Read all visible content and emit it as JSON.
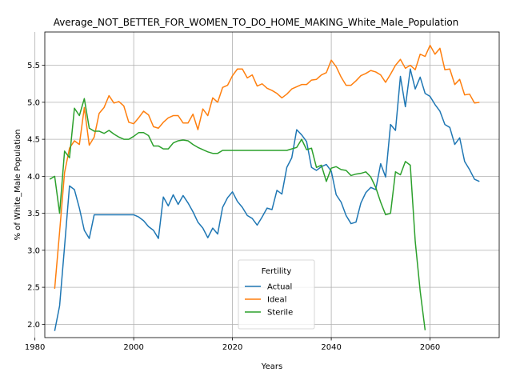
{
  "chart_data": {
    "type": "line",
    "title": "Average_NOT_BETTER_FOR_WOMEN_TO_DO_HOME_MAKING_White_Male_Population",
    "xlabel": "Years",
    "ylabel": "% of White_Male Population",
    "xlim": [
      1982,
      2074
    ],
    "ylim": [
      1.82,
      5.95
    ],
    "xticks": [
      1980,
      2000,
      2020,
      2040,
      2060
    ],
    "yticks": [
      2.0,
      2.5,
      3.0,
      3.5,
      4.0,
      4.5,
      5.0,
      5.5
    ],
    "grid": true,
    "legend": {
      "title": "Fertility",
      "placement": "lower-center"
    },
    "series": [
      {
        "name": "Actual",
        "color": "#1f77b4",
        "x": [
          1984,
          1985,
          1986,
          1987,
          1988,
          1989,
          1990,
          1991,
          1992,
          1993,
          1994,
          1995,
          1996,
          1997,
          1998,
          1999,
          2000,
          2001,
          2002,
          2003,
          2004,
          2005,
          2006,
          2007,
          2008,
          2009,
          2010,
          2011,
          2012,
          2013,
          2014,
          2015,
          2016,
          2017,
          2018,
          2019,
          2020,
          2021,
          2022,
          2023,
          2024,
          2025,
          2026,
          2027,
          2028,
          2029,
          2030,
          2031,
          2032,
          2033,
          2034,
          2035,
          2036,
          2037,
          2038,
          2039,
          2040,
          2041,
          2042,
          2043,
          2044,
          2045,
          2046,
          2047,
          2048,
          2049,
          2050,
          2051,
          2052,
          2053,
          2054,
          2055,
          2056,
          2057,
          2058,
          2059,
          2060,
          2061,
          2062,
          2063,
          2064,
          2065,
          2066,
          2067,
          2068,
          2069,
          2070
        ],
        "y": [
          1.91,
          2.25,
          3.05,
          3.87,
          3.82,
          3.57,
          3.27,
          3.16,
          3.48,
          3.48,
          3.48,
          3.48,
          3.48,
          3.48,
          3.48,
          3.48,
          3.48,
          3.45,
          3.4,
          3.32,
          3.27,
          3.16,
          3.72,
          3.6,
          3.75,
          3.62,
          3.74,
          3.64,
          3.52,
          3.38,
          3.3,
          3.17,
          3.3,
          3.22,
          3.58,
          3.71,
          3.79,
          3.66,
          3.58,
          3.47,
          3.43,
          3.34,
          3.45,
          3.57,
          3.55,
          3.81,
          3.76,
          4.12,
          4.25,
          4.63,
          4.56,
          4.47,
          4.12,
          4.08,
          4.13,
          4.16,
          4.07,
          3.75,
          3.65,
          3.47,
          3.36,
          3.38,
          3.64,
          3.78,
          3.85,
          3.82,
          4.17,
          3.99,
          4.7,
          4.62,
          5.35,
          4.94,
          5.45,
          5.18,
          5.34,
          5.12,
          5.08,
          4.97,
          4.88,
          4.7,
          4.66,
          4.43,
          4.52,
          4.2,
          4.09,
          3.96,
          3.93
        ]
      },
      {
        "name": "Ideal",
        "color": "#ff7f0e",
        "x": [
          1984,
          1985,
          1986,
          1987,
          1988,
          1989,
          1990,
          1991,
          1992,
          1993,
          1994,
          1995,
          1996,
          1997,
          1998,
          1999,
          2000,
          2001,
          2002,
          2003,
          2004,
          2005,
          2006,
          2007,
          2008,
          2009,
          2010,
          2011,
          2012,
          2013,
          2014,
          2015,
          2016,
          2017,
          2018,
          2019,
          2020,
          2021,
          2022,
          2023,
          2024,
          2025,
          2026,
          2027,
          2028,
          2029,
          2030,
          2031,
          2032,
          2033,
          2034,
          2035,
          2036,
          2037,
          2038,
          2039,
          2040,
          2041,
          2042,
          2043,
          2044,
          2045,
          2046,
          2047,
          2048,
          2049,
          2050,
          2051,
          2052,
          2053,
          2054,
          2055,
          2056,
          2057,
          2058,
          2059,
          2060,
          2061,
          2062,
          2063,
          2064,
          2065,
          2066,
          2067,
          2068,
          2069,
          2070
        ],
        "y": [
          2.48,
          3.25,
          4.05,
          4.38,
          4.48,
          4.43,
          4.93,
          4.42,
          4.53,
          4.85,
          4.93,
          5.09,
          4.99,
          5.01,
          4.95,
          4.73,
          4.71,
          4.79,
          4.88,
          4.83,
          4.67,
          4.65,
          4.73,
          4.79,
          4.82,
          4.82,
          4.72,
          4.72,
          4.84,
          4.63,
          4.91,
          4.82,
          5.06,
          5.0,
          5.2,
          5.23,
          5.36,
          5.45,
          5.45,
          5.33,
          5.37,
          5.22,
          5.25,
          5.19,
          5.16,
          5.12,
          5.06,
          5.11,
          5.18,
          5.21,
          5.24,
          5.24,
          5.3,
          5.31,
          5.37,
          5.4,
          5.57,
          5.48,
          5.34,
          5.23,
          5.23,
          5.29,
          5.36,
          5.39,
          5.43,
          5.41,
          5.37,
          5.27,
          5.38,
          5.5,
          5.58,
          5.46,
          5.5,
          5.44,
          5.65,
          5.62,
          5.77,
          5.65,
          5.73,
          5.44,
          5.45,
          5.24,
          5.31,
          5.1,
          5.11,
          4.99,
          5.0
        ]
      },
      {
        "name": "Sterile",
        "color": "#2ca02c",
        "x": [
          1983,
          1984,
          1985,
          1986,
          1987,
          1988,
          1989,
          1990,
          1991,
          1992,
          1993,
          1994,
          1995,
          1996,
          1997,
          1998,
          1999,
          2000,
          2001,
          2002,
          2003,
          2004,
          2005,
          2006,
          2007,
          2008,
          2009,
          2010,
          2011,
          2012,
          2013,
          2014,
          2015,
          2016,
          2017,
          2018,
          2019,
          2020,
          2021,
          2022,
          2023,
          2024,
          2025,
          2026,
          2027,
          2028,
          2029,
          2030,
          2031,
          2032,
          2033,
          2034,
          2035,
          2036,
          2037,
          2038,
          2039,
          2040,
          2041,
          2042,
          2043,
          2044,
          2045,
          2046,
          2047,
          2048,
          2049,
          2050,
          2051,
          2052,
          2053,
          2054,
          2055,
          2056,
          2057,
          2058,
          2059
        ],
        "y": [
          3.96,
          4.0,
          3.5,
          4.34,
          4.25,
          4.92,
          4.82,
          5.05,
          4.65,
          4.61,
          4.61,
          4.58,
          4.62,
          4.57,
          4.53,
          4.5,
          4.5,
          4.54,
          4.59,
          4.59,
          4.55,
          4.41,
          4.41,
          4.37,
          4.37,
          4.45,
          4.48,
          4.49,
          4.48,
          4.43,
          4.39,
          4.36,
          4.33,
          4.31,
          4.31,
          4.35,
          4.35,
          4.35,
          4.35,
          4.35,
          4.35,
          4.35,
          4.35,
          4.35,
          4.35,
          4.35,
          4.35,
          4.35,
          4.35,
          4.37,
          4.39,
          4.5,
          4.36,
          4.38,
          4.12,
          4.15,
          3.93,
          4.11,
          4.13,
          4.09,
          4.08,
          4.01,
          4.03,
          4.04,
          4.06,
          3.99,
          3.85,
          3.65,
          3.48,
          3.5,
          4.06,
          4.02,
          4.2,
          4.15,
          3.12,
          2.45,
          1.92
        ]
      }
    ]
  }
}
